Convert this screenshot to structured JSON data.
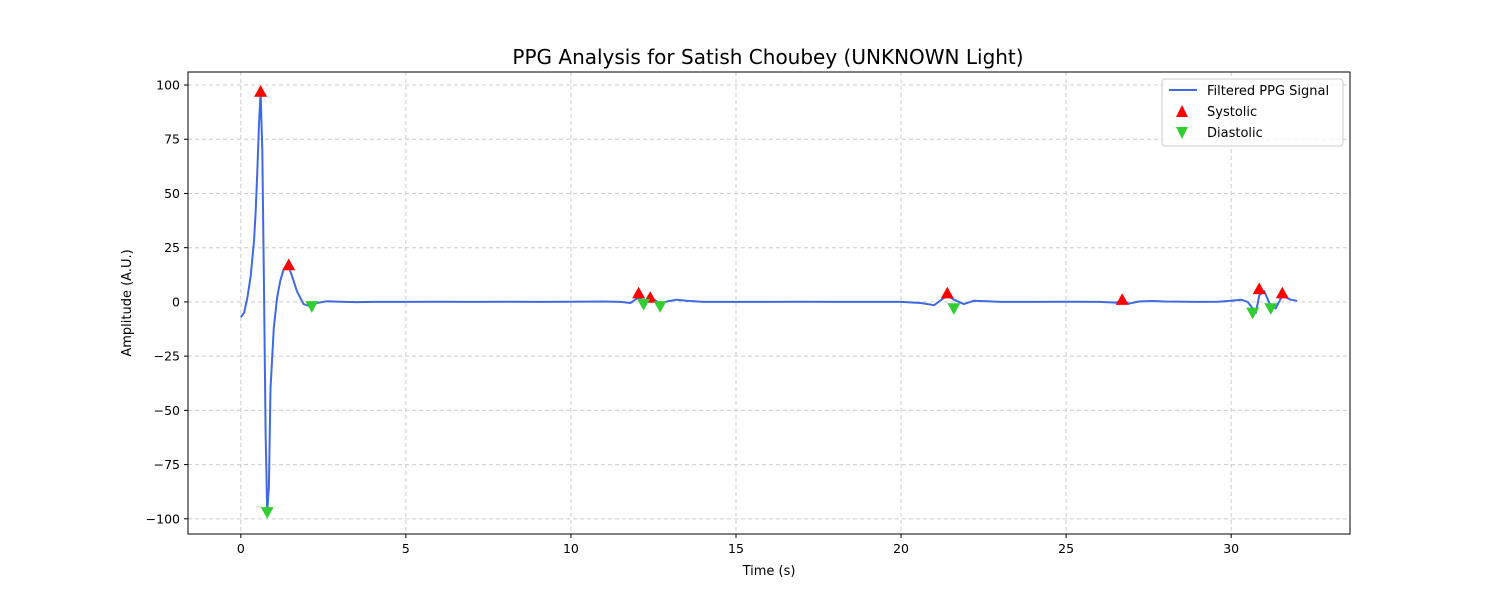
{
  "chart_data": {
    "type": "line",
    "title": "PPG Analysis for Satish Choubey (UNKNOWN Light)",
    "xlabel": "Time (s)",
    "ylabel": "Amplitude (A.U.)",
    "xlim": [
      -1.6,
      33.6
    ],
    "ylim": [
      -107,
      106
    ],
    "xticks": [
      0,
      5,
      10,
      15,
      20,
      25,
      30
    ],
    "yticks": [
      100,
      75,
      50,
      25,
      0,
      -25,
      -50,
      -75,
      -100
    ],
    "grid": true,
    "legend_position": "top-right",
    "legend": [
      "Filtered PPG Signal",
      "Systolic",
      "Diastolic"
    ],
    "series": [
      {
        "name": "Filtered PPG Signal",
        "color": "#4169e1",
        "marker": "line",
        "x": [
          0.0,
          0.1,
          0.2,
          0.3,
          0.4,
          0.45,
          0.5,
          0.55,
          0.6,
          0.65,
          0.7,
          0.75,
          0.8,
          0.85,
          0.9,
          1.0,
          1.1,
          1.2,
          1.3,
          1.4,
          1.45,
          1.55,
          1.7,
          1.9,
          2.1,
          2.3,
          2.6,
          3.0,
          3.5,
          4.0,
          5.0,
          6.0,
          7.0,
          8.0,
          9.0,
          10.0,
          11.0,
          11.5,
          11.8,
          12.05,
          12.2,
          12.4,
          12.55,
          12.7,
          12.9,
          13.2,
          13.5,
          14.0,
          15.0,
          16.0,
          17.0,
          18.0,
          19.0,
          20.0,
          20.6,
          21.0,
          21.4,
          21.6,
          21.9,
          22.2,
          22.6,
          23.0,
          24.0,
          25.0,
          26.0,
          26.5,
          26.7,
          26.9,
          27.2,
          27.6,
          28.0,
          29.0,
          29.6,
          30.0,
          30.3,
          30.5,
          30.65,
          30.75,
          30.85,
          31.0,
          31.2,
          31.35,
          31.55,
          31.8,
          32.0
        ],
        "values": [
          -7,
          -5,
          2,
          12,
          28,
          42,
          60,
          82,
          97,
          70,
          10,
          -60,
          -97,
          -85,
          -40,
          -12,
          2,
          10,
          15,
          17,
          16,
          12,
          5,
          -1,
          -2,
          -0.5,
          0.3,
          0.1,
          -0.1,
          0.0,
          0.0,
          0.1,
          0.0,
          0.1,
          0.0,
          0.1,
          0.2,
          0.0,
          -0.5,
          2,
          0.5,
          1.5,
          0.8,
          -1,
          0.2,
          1.0,
          0.5,
          0.0,
          0.0,
          0.0,
          0.1,
          0.0,
          0.0,
          0.0,
          -0.5,
          -1.5,
          3,
          1,
          -1,
          0.5,
          0.3,
          0.0,
          0.0,
          0.1,
          0.0,
          -0.3,
          0.5,
          -0.8,
          0.2,
          0.4,
          0.2,
          0.0,
          0.1,
          0.5,
          1.0,
          0.0,
          -3,
          -5,
          3,
          5,
          -2,
          -3,
          3,
          1,
          0.5
        ]
      },
      {
        "name": "Systolic",
        "color": "#ff0000",
        "marker": "triangle-up",
        "x": [
          0.6,
          1.45,
          12.05,
          12.4,
          21.4,
          26.7,
          30.85,
          31.55
        ],
        "values": [
          97,
          17,
          4,
          2,
          4,
          1,
          6,
          4
        ]
      },
      {
        "name": "Diastolic",
        "color": "#32cd32",
        "marker": "triangle-down",
        "x": [
          0.8,
          2.15,
          12.2,
          12.7,
          21.6,
          30.65,
          31.2
        ],
        "values": [
          -97,
          -2,
          -1,
          -2,
          -3,
          -5,
          -3
        ]
      }
    ]
  }
}
